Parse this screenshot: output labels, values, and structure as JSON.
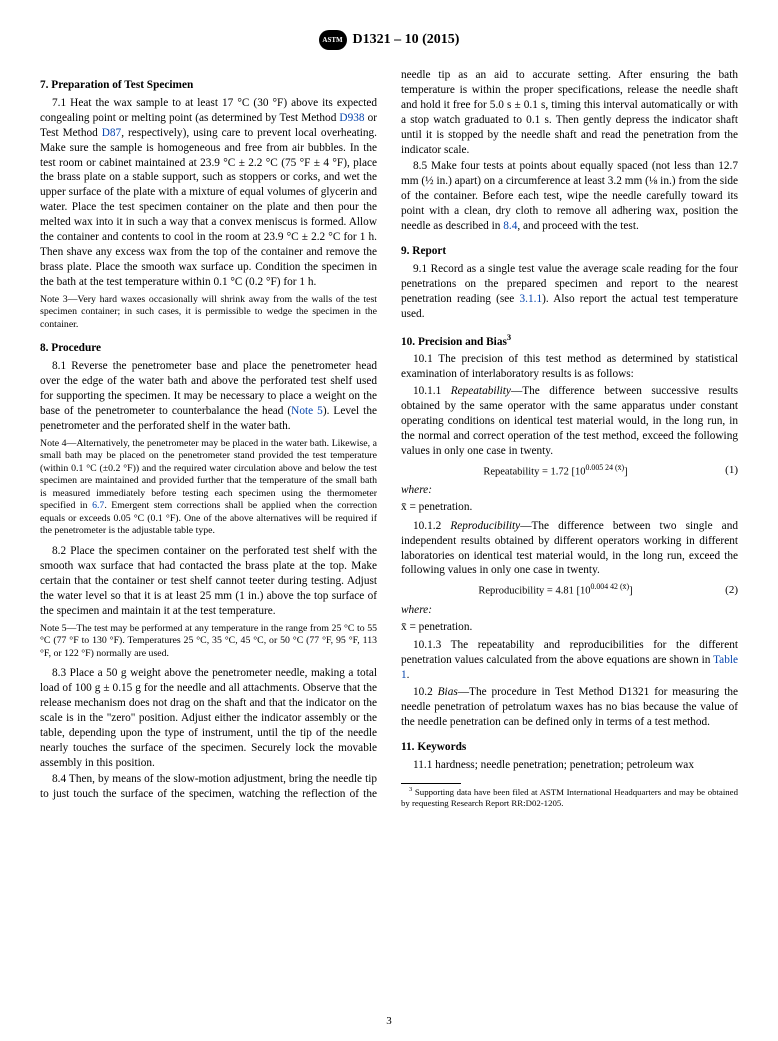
{
  "header": {
    "logo_text": "ASTM",
    "designation": "D1321 – 10 (2015)"
  },
  "page_number": "3",
  "sections": {
    "s7": {
      "title": "7.  Preparation of Test Specimen",
      "p7_1_a": "7.1  Heat the wax sample to at least 17 °C (30 °F) above its expected congealing point or melting point (as determined by Test Method ",
      "link_D938": "D938",
      "p7_1_b": " or Test Method ",
      "link_D87": "D87",
      "p7_1_c": ", respectively), using care to prevent local overheating. Make sure the sample is homogeneous and free from air bubbles. In the test room or cabinet maintained at 23.9 °C ± 2.2 °C (75 °F ± 4 °F), place the brass plate on a stable support, such as stoppers or corks, and wet the upper surface of the plate with a mixture of equal volumes of glycerin and water. Place the test specimen container on the plate and then pour the melted wax into it in such a way that a convex meniscus is formed. Allow the container and contents to cool in the room at 23.9 °C ± 2.2 °C for 1 h. Then shave any excess wax from the top of the container and remove the brass plate. Place the smooth wax surface up. Condition the specimen in the bath at the test temperature within 0.1 °C (0.2 °F) for 1 h.",
      "note3": "Note 3—Very hard waxes occasionally will shrink away from the walls of the test specimen container; in such cases, it is permissible to wedge the specimen in the container."
    },
    "s8": {
      "title": "8.  Procedure",
      "p8_1_a": "8.1  Reverse the penetrometer base and place the penetrometer head over the edge of the water bath and above the perforated test shelf used for supporting the specimen. It may be necessary to place a weight on the base of the penetrometer to counterbalance the head (",
      "link_note5": "Note 5",
      "p8_1_b": "). Level the penetrometer and the perforated shelf in the water bath.",
      "note4_a": "Note 4—Alternatively, the penetrometer may be placed in the water bath. Likewise, a small bath may be placed on the penetrometer stand provided the test temperature (within 0.1 °C (±0.2 °F)) and the required water circulation above and below the test specimen are maintained and provided further that the temperature of the small bath is measured immediately before testing each specimen using the thermometer specified in ",
      "link_6_7": "6.7",
      "note4_b": ". Emergent stem corrections shall be applied when the correction equals or exceeds 0.05 °C (0.1 °F). One of the above alternatives will be required if the penetrometer is the adjustable table type.",
      "p8_2": "8.2  Place the specimen container on the perforated test shelf with the smooth wax surface that had contacted the brass plate at the top. Make certain that the container or test shelf cannot teeter during testing. Adjust the water level so that it is at least 25 mm (1 in.) above the top surface of the specimen and maintain it at the test temperature.",
      "note5": "Note 5—The test may be performed at any temperature in the range from 25 °C to 55 °C (77 °F to 130 °F). Temperatures 25 °C, 35 °C, 45 °C, or 50 °C (77 °F, 95 °F, 113 °F, or 122 °F) normally are used.",
      "p8_3": "8.3  Place a 50 g weight above the penetrometer needle, making a total load of 100 g ± 0.15 g for the needle and all attachments. Observe that the release mechanism does not drag on the shaft and that the indicator on the scale is in the \"zero\" position. Adjust either the indicator assembly or the table, depending upon the type of instrument, until the tip of the needle nearly touches the surface of the specimen. Securely lock the movable assembly in this position.",
      "p8_4": "8.4  Then, by means of the slow-motion adjustment, bring the needle tip to just touch the surface of the specimen, watching the reflection of the needle tip as an aid to accurate setting. After ensuring the bath temperature is within the proper specifications, release the needle shaft and hold it free for 5.0 s ± 0.1 s, timing this interval automatically or with a stop watch graduated to 0.1 s. Then gently depress the indicator shaft until it is stopped by the needle shaft and read the penetration from the indicator scale.",
      "p8_5_a": "8.5  Make four tests at points about equally spaced (not less than 12.7 mm (½ in.) apart) on a circumference at least 3.2 mm (⅛ in.) from the side of the container. Before each test, wipe the needle carefully toward its point with a clean, dry cloth to remove all adhering wax, position the needle as described in ",
      "link_8_4": "8.4",
      "p8_5_b": ", and proceed with the test."
    },
    "s9": {
      "title": "9.  Report",
      "p9_1_a": "9.1  Record as a single test value the average scale reading for the four penetrations on the prepared specimen and report to the nearest penetration reading (see ",
      "link_3_1_1": "3.1.1",
      "p9_1_b": "). Also report the actual test temperature used."
    },
    "s10": {
      "title": "10.  Precision and Bias",
      "title_sup": "3",
      "p10_1": "10.1  The precision of this test method as determined by statistical examination of interlaboratory results is as follows:",
      "p10_1_1_label": "Repeatability",
      "p10_1_1": "—The difference between successive results obtained by the same operator with the same apparatus under constant operating conditions on identical test material would, in the long run, in the normal and correct operation of the test method, exceed the following values in only one case in twenty.",
      "eq1": "Repeatability = 1.72 [10",
      "eq1_exp": "0.005 24 (x̄)",
      "eq1_close": "]",
      "eq1_num": "(1)",
      "where": "where:",
      "where_def": "x̄  =  penetration.",
      "p10_1_2_label": "Reproducibility",
      "p10_1_2": "—The difference between two single and independent results obtained by different operators working in different laboratories on identical test material would, in the long run, exceed the following values in only one case in twenty.",
      "eq2": "Reproducibility = 4.81 [10",
      "eq2_exp": "0.004 42 (x̄)",
      "eq2_close": "]",
      "eq2_num": "(2)",
      "p10_1_3_a": "10.1.3  The repeatability and reproducibilities for the different penetration values calculated from the above equations are shown in ",
      "link_table1": "Table 1",
      "p10_1_3_b": ".",
      "p10_2_label": "Bias",
      "p10_2": "—The procedure in Test Method D1321 for measuring the needle penetration of petrolatum waxes has no bias because the value of the needle penetration can be defined only in terms of a test method."
    },
    "s11": {
      "title": "11.  Keywords",
      "p11_1": "11.1  hardness; needle penetration; penetration; petroleum wax"
    },
    "footnote": {
      "marker": "3",
      "text": " Supporting data have been filed at ASTM International Headquarters and may be obtained by requesting Research Report RR:D02-1205."
    }
  }
}
